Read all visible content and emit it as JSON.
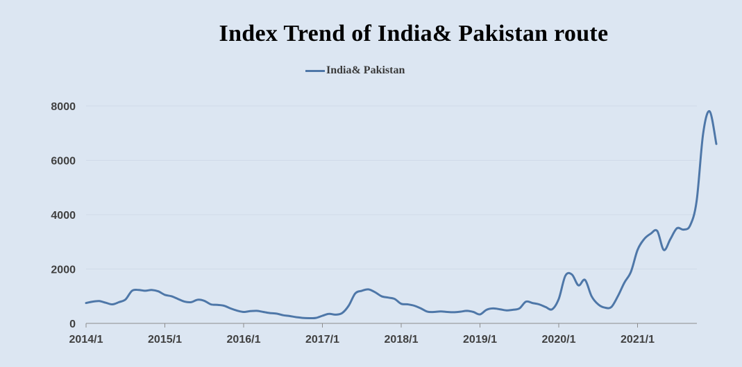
{
  "chart_data": {
    "type": "line",
    "title": "Index Trend of India& Pakistan route",
    "legend": "top-center",
    "grid": true,
    "xlabel": "",
    "ylabel": "",
    "ylim": [
      0,
      8000
    ],
    "y_ticks": [
      "0",
      "2000",
      "4000",
      "6000",
      "8000"
    ],
    "x_ticks": [
      "2014/1",
      "2015/1",
      "2016/1",
      "2017/1",
      "2018/1",
      "2019/1",
      "2020/1",
      "2021/1"
    ],
    "series": [
      {
        "name": "India& Pakistan",
        "color": "#4e77a8",
        "points": [
          [
            "2014-01",
            750
          ],
          [
            "2014-02",
            800
          ],
          [
            "2014-03",
            820
          ],
          [
            "2014-04",
            760
          ],
          [
            "2014-05",
            700
          ],
          [
            "2014-06",
            780
          ],
          [
            "2014-07",
            880
          ],
          [
            "2014-08",
            1200
          ],
          [
            "2014-09",
            1230
          ],
          [
            "2014-10",
            1200
          ],
          [
            "2014-11",
            1230
          ],
          [
            "2014-12",
            1180
          ],
          [
            "2015-01",
            1050
          ],
          [
            "2015-02",
            1000
          ],
          [
            "2015-03",
            900
          ],
          [
            "2015-04",
            800
          ],
          [
            "2015-05",
            780
          ],
          [
            "2015-06",
            870
          ],
          [
            "2015-07",
            830
          ],
          [
            "2015-08",
            700
          ],
          [
            "2015-09",
            680
          ],
          [
            "2015-10",
            650
          ],
          [
            "2015-11",
            550
          ],
          [
            "2015-12",
            470
          ],
          [
            "2016-01",
            420
          ],
          [
            "2016-02",
            450
          ],
          [
            "2016-03",
            460
          ],
          [
            "2016-04",
            420
          ],
          [
            "2016-05",
            380
          ],
          [
            "2016-06",
            360
          ],
          [
            "2016-07",
            300
          ],
          [
            "2016-08",
            270
          ],
          [
            "2016-09",
            230
          ],
          [
            "2016-10",
            200
          ],
          [
            "2016-11",
            190
          ],
          [
            "2016-12",
            200
          ],
          [
            "2017-01",
            280
          ],
          [
            "2017-02",
            350
          ],
          [
            "2017-03",
            320
          ],
          [
            "2017-04",
            380
          ],
          [
            "2017-05",
            650
          ],
          [
            "2017-06",
            1100
          ],
          [
            "2017-07",
            1200
          ],
          [
            "2017-08",
            1250
          ],
          [
            "2017-09",
            1150
          ],
          [
            "2017-10",
            1000
          ],
          [
            "2017-11",
            950
          ],
          [
            "2017-12",
            900
          ],
          [
            "2018-01",
            720
          ],
          [
            "2018-02",
            700
          ],
          [
            "2018-03",
            650
          ],
          [
            "2018-04",
            550
          ],
          [
            "2018-05",
            430
          ],
          [
            "2018-06",
            420
          ],
          [
            "2018-07",
            440
          ],
          [
            "2018-08",
            420
          ],
          [
            "2018-09",
            410
          ],
          [
            "2018-10",
            430
          ],
          [
            "2018-11",
            460
          ],
          [
            "2018-12",
            420
          ],
          [
            "2019-01",
            330
          ],
          [
            "2019-02",
            500
          ],
          [
            "2019-03",
            550
          ],
          [
            "2019-04",
            520
          ],
          [
            "2019-05",
            480
          ],
          [
            "2019-06",
            500
          ],
          [
            "2019-07",
            550
          ],
          [
            "2019-08",
            800
          ],
          [
            "2019-09",
            750
          ],
          [
            "2019-10",
            700
          ],
          [
            "2019-11",
            600
          ],
          [
            "2019-12",
            520
          ],
          [
            "2020-01",
            900
          ],
          [
            "2020-02",
            1750
          ],
          [
            "2020-03",
            1800
          ],
          [
            "2020-04",
            1400
          ],
          [
            "2020-05",
            1600
          ],
          [
            "2020-06",
            1000
          ],
          [
            "2020-07",
            700
          ],
          [
            "2020-08",
            580
          ],
          [
            "2020-09",
            600
          ],
          [
            "2020-10",
            1000
          ],
          [
            "2020-11",
            1500
          ],
          [
            "2020-12",
            1900
          ],
          [
            "2021-01",
            2700
          ],
          [
            "2021-02",
            3100
          ],
          [
            "2021-03",
            3300
          ],
          [
            "2021-04",
            3400
          ],
          [
            "2021-05",
            2700
          ],
          [
            "2021-06",
            3100
          ],
          [
            "2021-07",
            3500
          ],
          [
            "2021-08",
            3450
          ],
          [
            "2021-09",
            3600
          ],
          [
            "2021-10",
            4500
          ],
          [
            "2021-11",
            7000
          ],
          [
            "2021-12",
            7800
          ],
          [
            "2022-01",
            6600
          ]
        ]
      }
    ]
  }
}
